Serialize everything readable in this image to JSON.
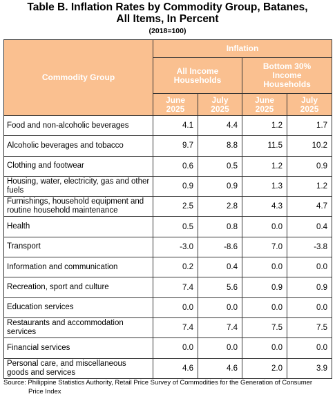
{
  "title_lines": [
    "Table B. Inflation Rates by Commodity Group, Batanes,",
    "All Items, In Percent"
  ],
  "subtitle": "(2018=100)",
  "table": {
    "header": {
      "commodity": "Commodity Group",
      "inflation": "Inflation",
      "groups": [
        "All Income Households",
        "Bottom 30% Income Households"
      ],
      "periods": [
        "June 2025",
        "July 2025",
        "June 2025",
        "July 2025"
      ]
    },
    "rows": [
      [
        "Food and non-alcoholic beverages",
        "4.1",
        "4.4",
        "1.2",
        "1.7"
      ],
      [
        "Alcoholic beverages and tobacco",
        "9.7",
        "8.8",
        "11.5",
        "10.2"
      ],
      [
        "Clothing and footwear",
        "0.6",
        "0.5",
        "1.2",
        "0.9"
      ],
      [
        "Housing, water, electricity, gas and other fuels",
        "0.9",
        "0.9",
        "1.3",
        "1.2"
      ],
      [
        "Furnishings, household equipment and routine household maintenance",
        "2.5",
        "2.8",
        "4.3",
        "4.7"
      ],
      [
        "Health",
        "0.5",
        "0.8",
        "0.0",
        "0.4"
      ],
      [
        "Transport",
        "-3.0",
        "-8.6",
        "7.0",
        "-3.8"
      ],
      [
        "Information and communication",
        "0.2",
        "0.4",
        "0.0",
        "0.0"
      ],
      [
        "Recreation, sport and culture",
        "7.4",
        "5.6",
        "0.9",
        "0.9"
      ],
      [
        "Education services",
        "0.0",
        "0.0",
        "0.0",
        "0.0"
      ],
      [
        "Restaurants and accommodation services",
        "7.4",
        "7.4",
        "7.5",
        "7.5"
      ],
      [
        "Financial services",
        "0.0",
        "0.0",
        "0.0",
        "0.0"
      ],
      [
        "Personal care, and miscellaneous goods and services",
        "4.6",
        "4.6",
        "2.0",
        "3.9"
      ]
    ]
  },
  "source": "Source: Philippine Statistics Authority, Retail Price Survey of Commodities for the Generation of Consumer Price Index"
}
